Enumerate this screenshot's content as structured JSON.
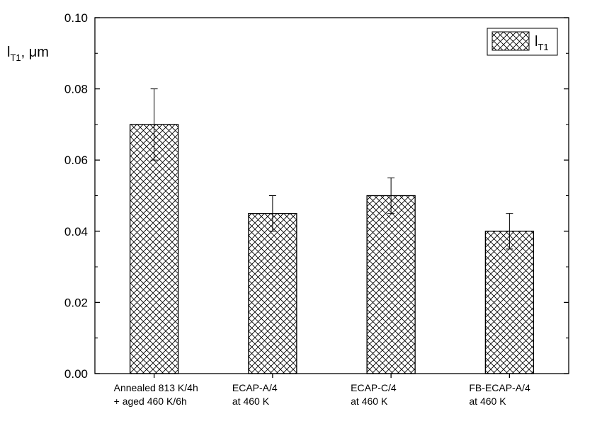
{
  "chart_data": {
    "type": "bar",
    "ylabel": "l",
    "ylabel_sub": "T1",
    "ylabel_unit": ", μm",
    "ylim": [
      0,
      0.1
    ],
    "yticks": [
      "0.00",
      "0.02",
      "0.04",
      "0.06",
      "0.08",
      "0.10"
    ],
    "categories": [
      [
        "Annealed 813 K/4h",
        "+ aged 460 K/6h"
      ],
      [
        "ECAP-A/4",
        "at 460 K"
      ],
      [
        "ECAP-C/4",
        "at 460 K"
      ],
      [
        "FB-ECAP-A/4",
        "at 460 K"
      ]
    ],
    "series": [
      {
        "name": "l",
        "name_sub": "T1",
        "values": [
          0.07,
          0.045,
          0.05,
          0.04
        ],
        "errors": [
          0.01,
          0.005,
          0.005,
          0.005
        ],
        "pattern": "crosshatch",
        "color": "#000000"
      }
    ],
    "legend_position": "top-right",
    "grid": false
  }
}
